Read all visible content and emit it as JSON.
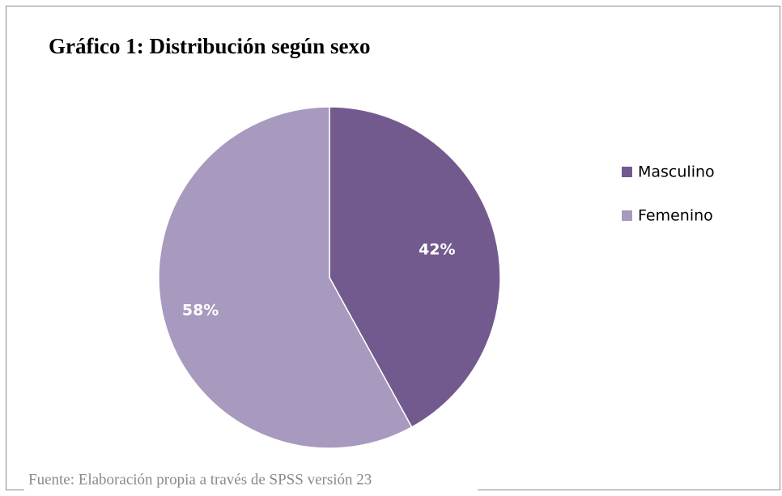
{
  "chart_data": {
    "type": "pie",
    "title": "Gráfico 1: Distribución según sexo",
    "categories": [
      "Masculino",
      "Femenino"
    ],
    "values": [
      42,
      58
    ],
    "value_labels": [
      "42%",
      "58%"
    ],
    "colors": [
      "#725a8f",
      "#a899be"
    ],
    "legend": "right",
    "source": "Fuente: Elaboración propia a través de SPSS versión 23"
  }
}
